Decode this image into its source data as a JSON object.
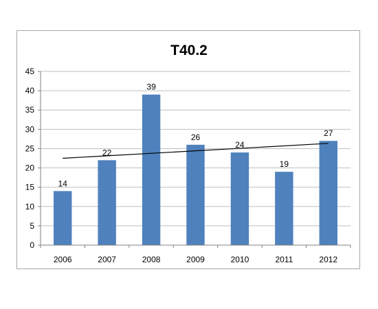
{
  "chart_data": {
    "type": "bar",
    "title": "T40.2",
    "xlabel": "",
    "ylabel": "",
    "categories": [
      "2006",
      "2007",
      "2008",
      "2009",
      "2010",
      "2011",
      "2012"
    ],
    "values": [
      14,
      22,
      39,
      26,
      24,
      19,
      27
    ],
    "ylim": [
      0,
      45
    ],
    "yticks": [
      0,
      5,
      10,
      15,
      20,
      25,
      30,
      35,
      40,
      45
    ],
    "grid": true,
    "legend": "none",
    "data_labels": true,
    "trendline": {
      "type": "linear",
      "color": "#000000"
    },
    "bar_color": "#4f81bd",
    "grid_color": "#bfbfbf"
  }
}
